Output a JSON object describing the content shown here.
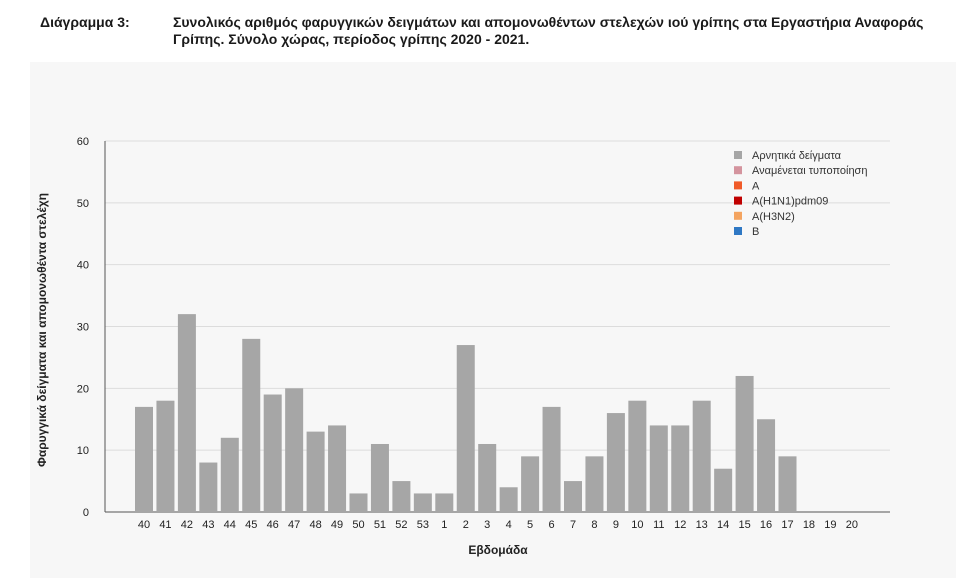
{
  "caption": {
    "label": "Διάγραμμα 3:",
    "text": "Συνολικός αριθμός φαρυγγικών δειγμάτων και απομονωθέντων στελεχών ιού γρίπης στα Εργαστήρια Αναφοράς Γρίπης. Σύνολο χώρας, περίοδος γρίπης 2020 - 2021."
  },
  "chart_data": {
    "type": "bar",
    "xlabel": "Εβδομάδα",
    "ylabel": "Φαρυγγικά δείγματα και απομονωθέντα στελέχη",
    "ylim": [
      0,
      60
    ],
    "yticks": [
      0,
      10,
      20,
      30,
      40,
      50,
      60
    ],
    "grid": true,
    "legend_position": "top-right",
    "categories": [
      "40",
      "41",
      "42",
      "43",
      "44",
      "45",
      "46",
      "47",
      "48",
      "49",
      "50",
      "51",
      "52",
      "53",
      "1",
      "2",
      "3",
      "4",
      "5",
      "6",
      "7",
      "8",
      "9",
      "10",
      "11",
      "12",
      "13",
      "14",
      "15",
      "16",
      "17",
      "18",
      "19",
      "20"
    ],
    "series": [
      {
        "name": "Αρνητικά δείγματα",
        "color": "#a6a6a6",
        "values": [
          17,
          18,
          32,
          8,
          12,
          28,
          19,
          20,
          13,
          14,
          3,
          11,
          5,
          3,
          3,
          27,
          11,
          4,
          9,
          17,
          5,
          9,
          16,
          18,
          14,
          14,
          18,
          7,
          22,
          15,
          9,
          0,
          0,
          0
        ]
      },
      {
        "name": "Αναμένεται τυποποίηση",
        "color": "#d4949e",
        "values": [
          0,
          0,
          0,
          0,
          0,
          0,
          0,
          0,
          0,
          0,
          0,
          0,
          0,
          0,
          0,
          0,
          0,
          0,
          0,
          0,
          0,
          0,
          0,
          0,
          0,
          0,
          0,
          0,
          0,
          0,
          0,
          0,
          0,
          0
        ]
      },
      {
        "name": "A",
        "color": "#f05a28",
        "values": [
          0,
          0,
          0,
          0,
          0,
          0,
          0,
          0,
          0,
          0,
          0,
          0,
          0,
          0,
          0,
          0,
          0,
          0,
          0,
          0,
          0,
          0,
          0,
          0,
          0,
          0,
          0,
          0,
          0,
          0,
          0,
          0,
          0,
          0
        ]
      },
      {
        "name": "A(H1N1)pdm09",
        "color": "#c00000",
        "values": [
          0,
          0,
          0,
          0,
          0,
          0,
          0,
          0,
          0,
          0,
          0,
          0,
          0,
          0,
          0,
          0,
          0,
          0,
          0,
          0,
          0,
          0,
          0,
          0,
          0,
          0,
          0,
          0,
          0,
          0,
          0,
          0,
          0,
          0
        ]
      },
      {
        "name": "A(H3N2)",
        "color": "#f4a460",
        "values": [
          0,
          0,
          0,
          0,
          0,
          0,
          0,
          0,
          0,
          0,
          0,
          0,
          0,
          0,
          0,
          0,
          0,
          0,
          0,
          0,
          0,
          0,
          0,
          0,
          0,
          0,
          0,
          0,
          0,
          0,
          0,
          0,
          0,
          0
        ]
      },
      {
        "name": "B",
        "color": "#2f78c4",
        "values": [
          0,
          0,
          0,
          0,
          0,
          0,
          0,
          0,
          0,
          0,
          0,
          0,
          0,
          0,
          0,
          0,
          0,
          0,
          0,
          0,
          0,
          0,
          0,
          0,
          0,
          0,
          0,
          0,
          0,
          0,
          0,
          0,
          0,
          0
        ]
      }
    ]
  }
}
